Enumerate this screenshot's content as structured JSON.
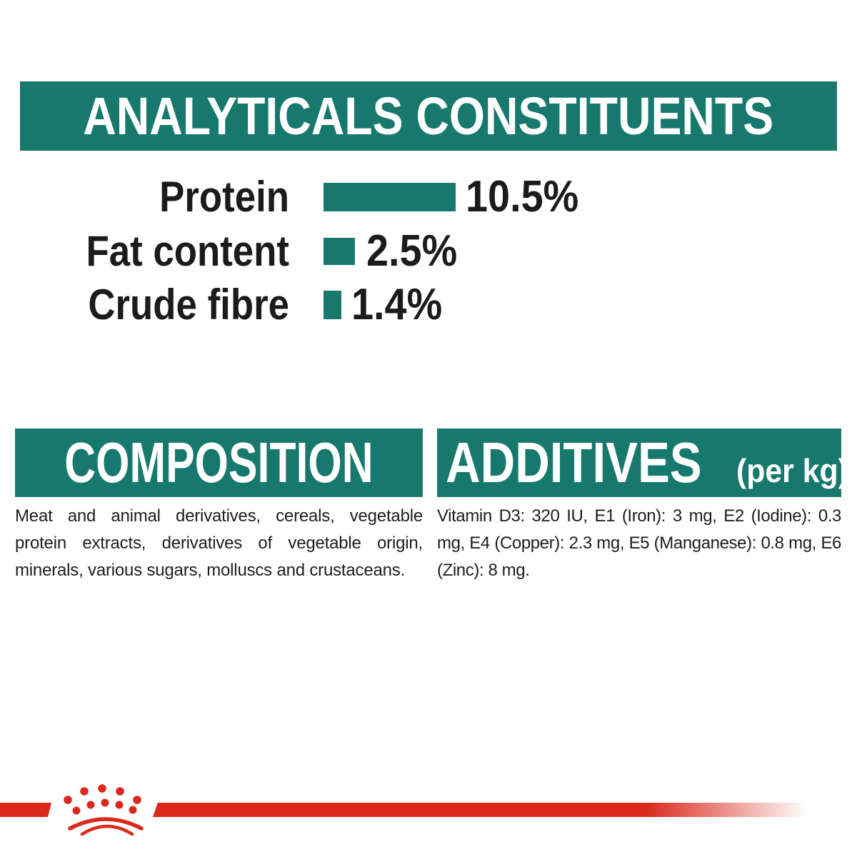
{
  "colors": {
    "teal": "#17796E",
    "red": "#DA291C",
    "text": "#1d1d1d",
    "background": "#ffffff"
  },
  "analyticals": {
    "title": "ANALYTICALS CONSTITUENTS"
  },
  "chart_data": {
    "type": "bar",
    "orientation": "horizontal",
    "title": "ANALYTICALS CONSTITUENTS",
    "categories": [
      "Protein",
      "Fat content",
      "Crude fibre"
    ],
    "values": [
      10.5,
      2.5,
      1.4
    ],
    "display_values": [
      "10.5%",
      "2.5%",
      "1.4%"
    ],
    "unit": "%",
    "bar_color": "#17796E",
    "xlim": [
      0,
      11
    ],
    "grid": false,
    "legend": false
  },
  "composition": {
    "title": "COMPOSITION",
    "body": "Meat and animal derivatives, cereals, vegetable protein extracts, derivatives of vegetable origin, minerals, various sugars, molluscs and crustaceans."
  },
  "additives": {
    "title": "ADDITIVES",
    "per_kg_label": "(per kg)",
    "body": "Vitamin D3: 320 IU, E1 (Iron): 3 mg, E2 (Iodine): 0.3 mg, E4 (Copper): 2.3 mg, E5 (Manganese): 0.8 mg, E6 (Zinc): 8 mg."
  },
  "footer": {
    "logo_icon": "royal-canin-crown-icon"
  }
}
